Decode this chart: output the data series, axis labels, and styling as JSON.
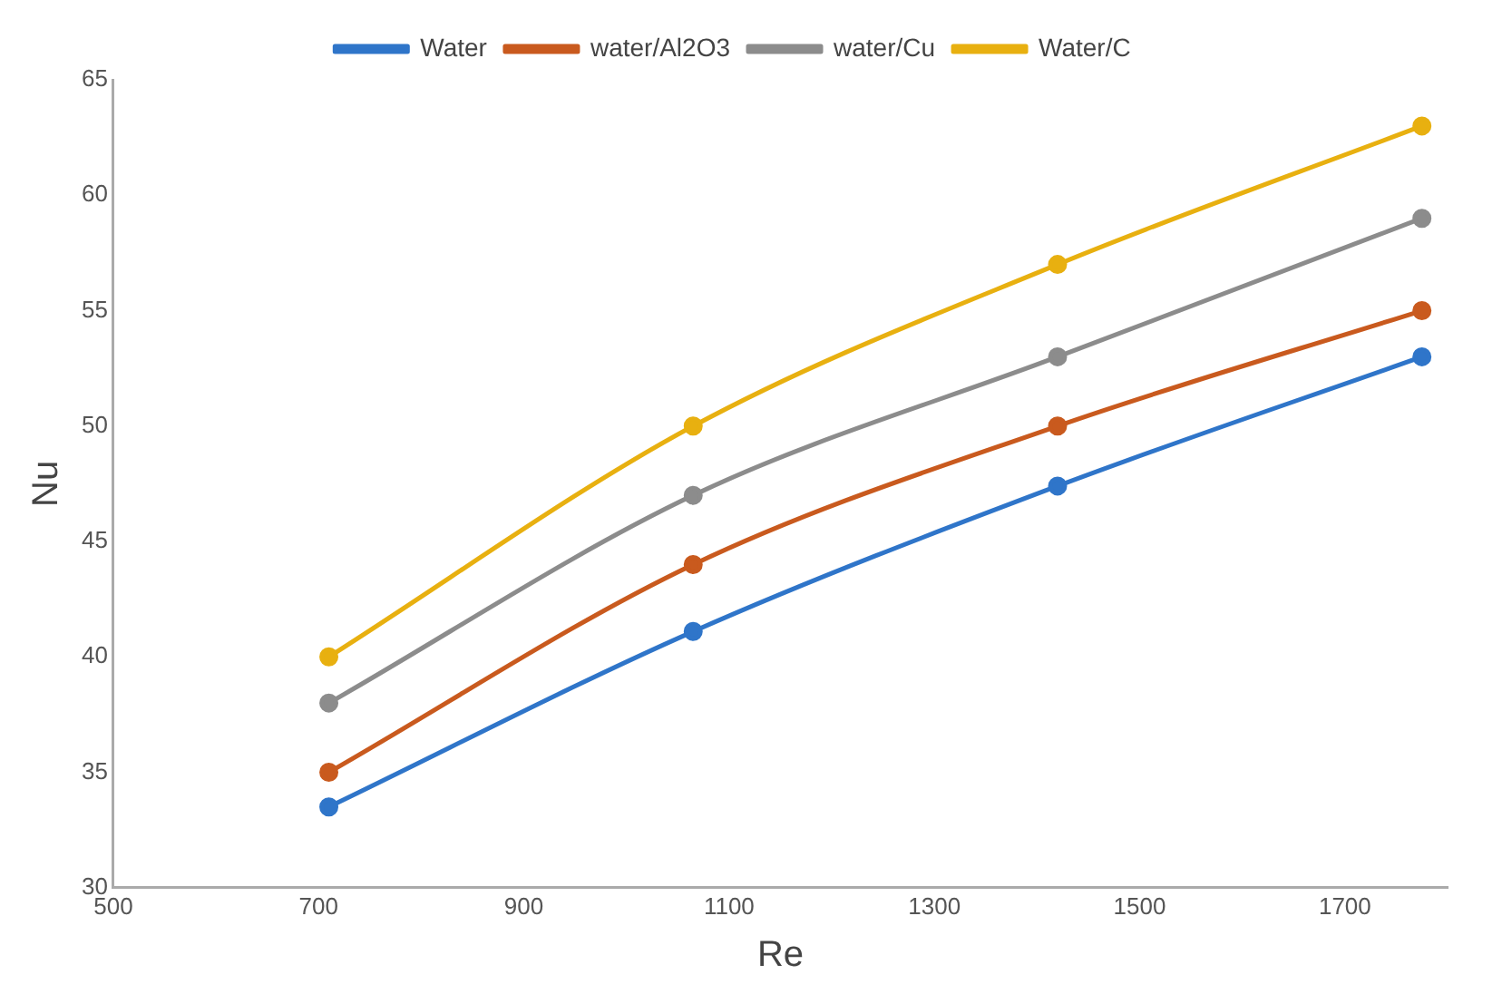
{
  "chart_data": {
    "type": "line",
    "xlabel": "Re",
    "ylabel": "Nu",
    "x": [
      710,
      1065,
      1420,
      1775
    ],
    "series": [
      {
        "name": "Water",
        "color": "#2f75c9",
        "values": [
          33.5,
          41.1,
          47.4,
          53
        ]
      },
      {
        "name": "water/Al2O3",
        "color": "#c95a1e",
        "values": [
          35,
          44,
          50,
          55
        ]
      },
      {
        "name": "water/Cu",
        "color": "#8c8c8c",
        "values": [
          38,
          47,
          53,
          59
        ]
      },
      {
        "name": "Water/C",
        "color": "#e8b010",
        "values": [
          40,
          50,
          57,
          63
        ]
      }
    ],
    "xlim": [
      500,
      1800
    ],
    "xticks": [
      500,
      700,
      900,
      1100,
      1300,
      1500,
      1700
    ],
    "ylim": [
      30,
      65
    ],
    "yticks": [
      30,
      35,
      40,
      45,
      50,
      55,
      60,
      65
    ],
    "grid": false,
    "legend": "top",
    "marker": "circle",
    "line_style": "solid"
  }
}
